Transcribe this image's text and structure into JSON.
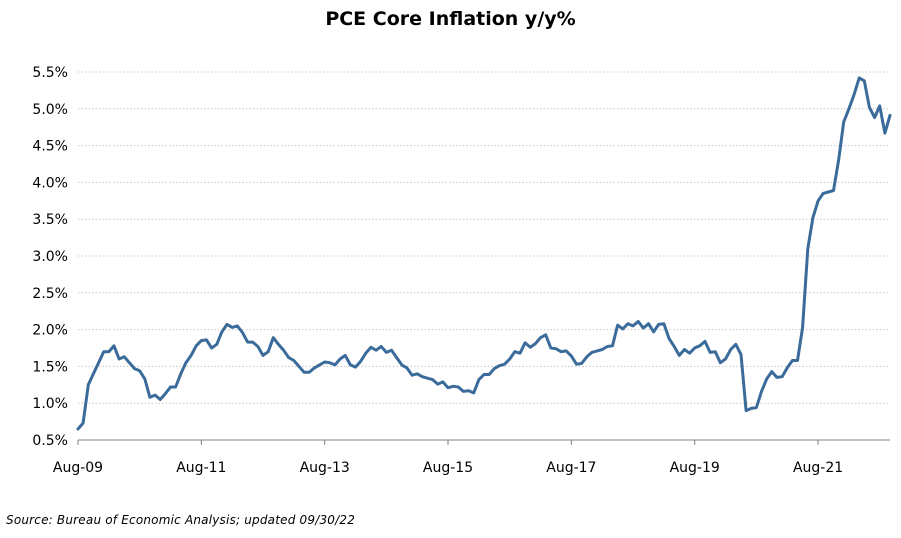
{
  "chart_data": {
    "type": "line",
    "title": "PCE Core Inflation y/y%",
    "xlabel": "",
    "ylabel": "",
    "ylim": [
      0.5,
      5.5
    ],
    "y_ticks": [
      "5.5%",
      "5.0%",
      "4.5%",
      "4.0%",
      "3.5%",
      "3.0%",
      "2.5%",
      "2.0%",
      "1.5%",
      "1.0%",
      "0.5%"
    ],
    "y_tick_values": [
      5.5,
      5.0,
      4.5,
      4.0,
      3.5,
      3.0,
      2.5,
      2.0,
      1.5,
      1.0,
      0.5
    ],
    "x_ticks": [
      "Aug-09",
      "Aug-11",
      "Aug-13",
      "Aug-15",
      "Aug-17",
      "Aug-19",
      "Aug-21"
    ],
    "x_tick_months": [
      0,
      24,
      48,
      72,
      96,
      120,
      144
    ],
    "grid": true,
    "line_color": "#3a6b9a",
    "series": [
      {
        "x_start": "Aug-09",
        "frequency": "monthly",
        "values": [
          0.65,
          0.73,
          1.25,
          1.4,
          1.55,
          1.7,
          1.7,
          1.78,
          1.6,
          1.63,
          1.55,
          1.47,
          1.44,
          1.33,
          1.08,
          1.11,
          1.05,
          1.13,
          1.22,
          1.22,
          1.4,
          1.55,
          1.65,
          1.78,
          1.85,
          1.86,
          1.75,
          1.8,
          1.97,
          2.07,
          2.03,
          2.05,
          1.96,
          1.83,
          1.83,
          1.77,
          1.65,
          1.7,
          1.89,
          1.8,
          1.72,
          1.62,
          1.58,
          1.5,
          1.42,
          1.42,
          1.48,
          1.52,
          1.56,
          1.55,
          1.52,
          1.6,
          1.65,
          1.52,
          1.49,
          1.57,
          1.68,
          1.76,
          1.72,
          1.77,
          1.69,
          1.72,
          1.62,
          1.52,
          1.48,
          1.38,
          1.4,
          1.36,
          1.34,
          1.32,
          1.26,
          1.29,
          1.21,
          1.23,
          1.22,
          1.16,
          1.17,
          1.14,
          1.32,
          1.39,
          1.39,
          1.47,
          1.51,
          1.53,
          1.6,
          1.7,
          1.68,
          1.82,
          1.76,
          1.81,
          1.89,
          1.93,
          1.75,
          1.74,
          1.7,
          1.71,
          1.64,
          1.53,
          1.54,
          1.63,
          1.69,
          1.71,
          1.73,
          1.77,
          1.78,
          2.06,
          2.01,
          2.08,
          2.05,
          2.11,
          2.02,
          2.08,
          1.97,
          2.07,
          2.08,
          1.88,
          1.77,
          1.65,
          1.73,
          1.68,
          1.75,
          1.78,
          1.84,
          1.69,
          1.7,
          1.55,
          1.6,
          1.73,
          1.8,
          1.66,
          0.9,
          0.93,
          0.94,
          1.16,
          1.33,
          1.43,
          1.35,
          1.36,
          1.48,
          1.58,
          1.58,
          2.03,
          3.1,
          3.52,
          3.75,
          3.85,
          3.87,
          3.89,
          4.3,
          4.82,
          5.0,
          5.19,
          5.42,
          5.38,
          5.02,
          4.88,
          5.04,
          4.67,
          4.91
        ]
      }
    ]
  },
  "source_text": "Source: Bureau of Economic Analysis; updated 09/30/22"
}
